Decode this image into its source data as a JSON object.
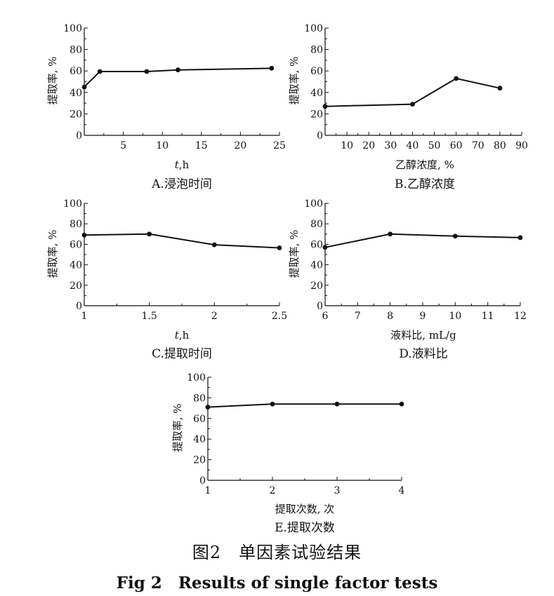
{
  "charts": [
    {
      "id": "A",
      "ylabel": "提取率, %",
      "xlabel_italic": "t",
      "xlabel_rest": ",h",
      "caption": "A.浸泡时间"
    },
    {
      "id": "B",
      "ylabel": "提取率, %",
      "xlabel_italic": "",
      "xlabel_rest": "乙醇浓度, %",
      "caption": "B.乙醇浓度"
    },
    {
      "id": "C",
      "ylabel": "提取率, %",
      "xlabel_italic": "t",
      "xlabel_rest": ",h",
      "caption": "C.提取时间"
    },
    {
      "id": "D",
      "ylabel": "提取率, %",
      "xlabel_italic": "",
      "xlabel_rest": "液料比, mL/g",
      "caption": "D.液料比"
    },
    {
      "id": "E",
      "ylabel": "提取率, %",
      "xlabel_italic": "",
      "xlabel_rest": "提取次数, 次",
      "caption": "E.提取次数"
    }
  ],
  "figure": {
    "caption_cn": "图2　单因素试验结果",
    "caption_en": "Fig 2　Results of single factor tests"
  },
  "chart_data": [
    {
      "type": "line",
      "title": "A.浸泡时间",
      "xlabel": "t,h",
      "ylabel": "提取率, %",
      "xlim": [
        0,
        25
      ],
      "ylim": [
        0,
        100
      ],
      "xticks": [
        5,
        10,
        15,
        20,
        25
      ],
      "yticks": [
        0,
        20,
        40,
        60,
        80,
        100
      ],
      "x": [
        0,
        2,
        8,
        12,
        24
      ],
      "y": [
        45,
        59.5,
        59.5,
        61,
        62.5
      ]
    },
    {
      "type": "line",
      "title": "B.乙醇浓度",
      "xlabel": "乙醇浓度, %",
      "ylabel": "提取率, %",
      "xlim": [
        0,
        90
      ],
      "ylim": [
        0,
        100
      ],
      "xticks": [
        10,
        20,
        30,
        40,
        50,
        60,
        70,
        80,
        90
      ],
      "yticks": [
        0,
        20,
        40,
        60,
        80,
        100
      ],
      "x": [
        0,
        40,
        60,
        80
      ],
      "y": [
        27,
        29,
        53,
        44
      ]
    },
    {
      "type": "line",
      "title": "C.提取时间",
      "xlabel": "t,h",
      "ylabel": "提取率, %",
      "xlim": [
        1,
        2.5
      ],
      "ylim": [
        0,
        100
      ],
      "xticks": [
        1,
        1.5,
        2,
        2.5
      ],
      "yticks": [
        0,
        20,
        40,
        60,
        80,
        100
      ],
      "x": [
        1,
        1.5,
        2,
        2.5
      ],
      "y": [
        69,
        70,
        59.5,
        56.5
      ]
    },
    {
      "type": "line",
      "title": "D.液料比",
      "xlabel": "液料比, mL/g",
      "ylabel": "提取率, %",
      "xlim": [
        6,
        12
      ],
      "ylim": [
        0,
        100
      ],
      "xticks": [
        6,
        7,
        8,
        9,
        10,
        11,
        12
      ],
      "yticks": [
        0,
        20,
        40,
        60,
        80,
        100
      ],
      "x": [
        6,
        8,
        10,
        12
      ],
      "y": [
        57,
        70,
        68,
        66.5
      ]
    },
    {
      "type": "line",
      "title": "E.提取次数",
      "xlabel": "提取次数, 次",
      "ylabel": "提取率, %",
      "xlim": [
        1,
        4
      ],
      "ylim": [
        0,
        100
      ],
      "xticks": [
        1,
        2,
        3,
        4
      ],
      "yticks": [
        0,
        20,
        40,
        60,
        80,
        100
      ],
      "x": [
        1,
        2,
        3,
        4
      ],
      "y": [
        71,
        74,
        74,
        74
      ]
    }
  ]
}
